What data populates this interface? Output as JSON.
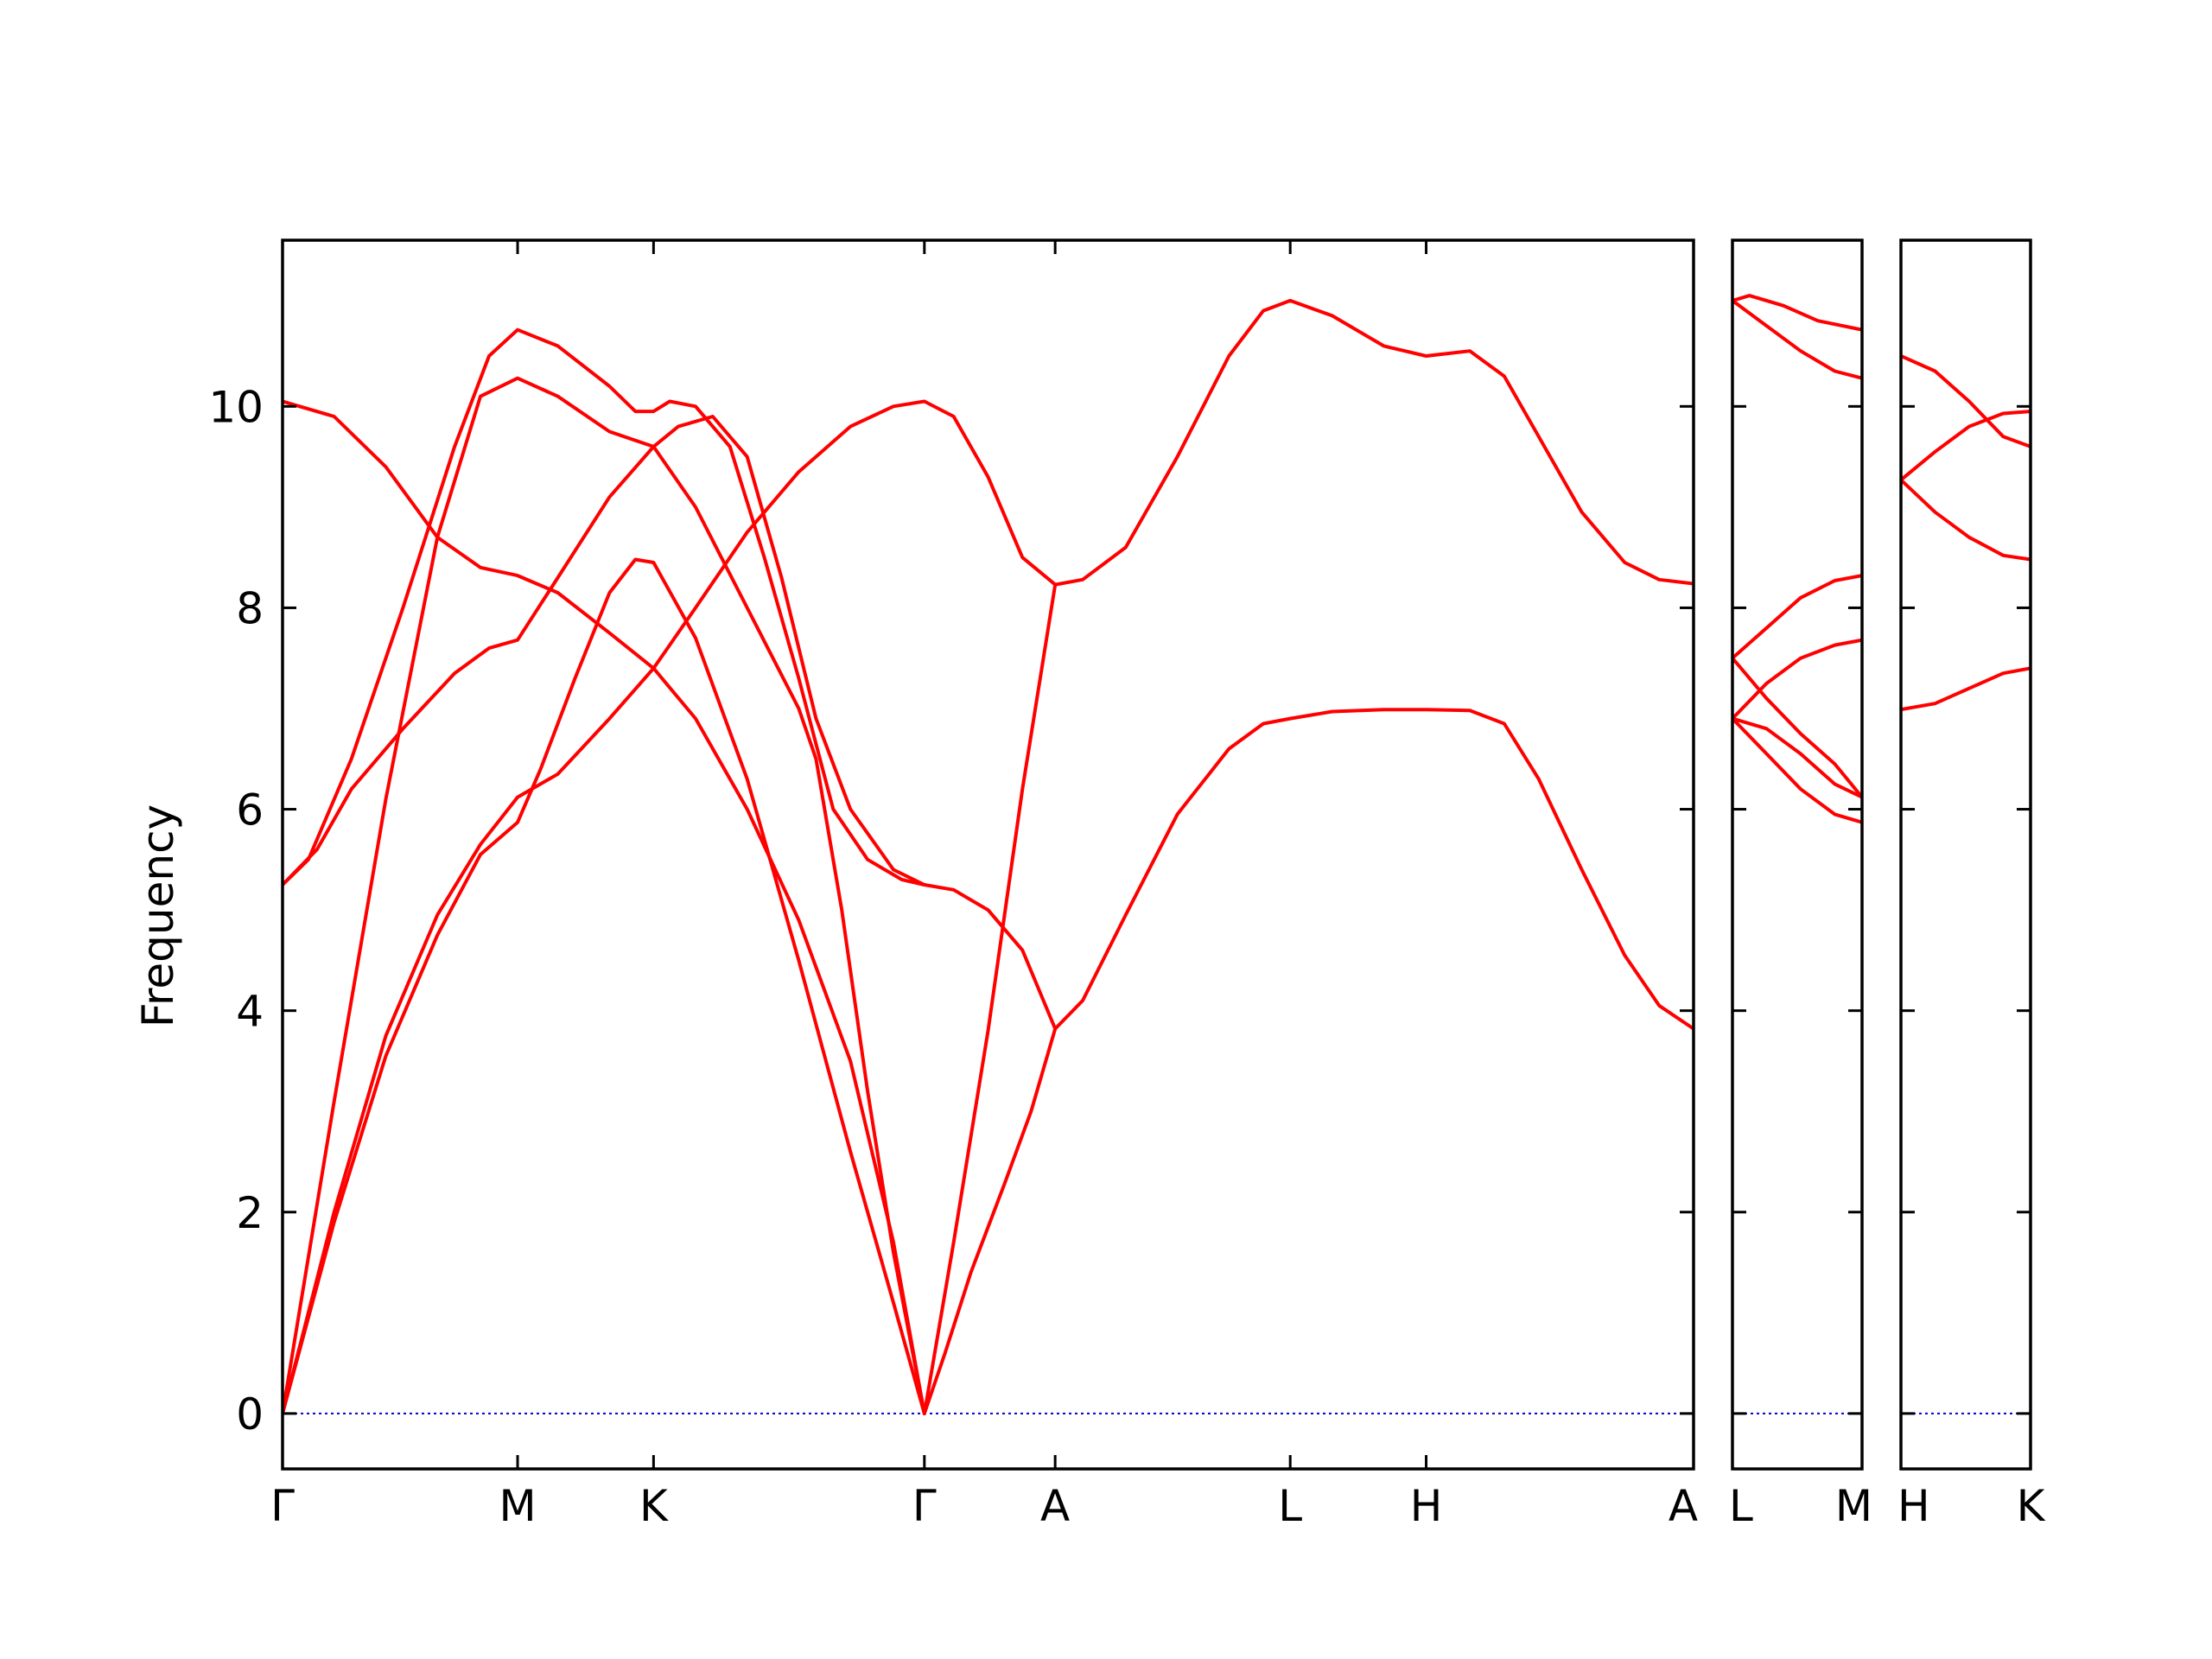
{
  "chart_data": {
    "type": "line",
    "title": "",
    "ylabel": "Frequency",
    "ylim": [
      -0.55,
      11.65
    ],
    "yticks": [
      0,
      2,
      4,
      6,
      8,
      10
    ],
    "grid": false,
    "colors": {
      "band": "#ff0000",
      "zero_line": "#0000cc",
      "frame": "#000000"
    },
    "segments": [
      {
        "name": "Γ–M–K–Γ–A–L–H–A",
        "xlim": [
          0,
          8.2
        ],
        "kpoints": [
          {
            "label": "Γ",
            "x": 0
          },
          {
            "label": "M",
            "x": 1.366
          },
          {
            "label": "K",
            "x": 2.156
          },
          {
            "label": "Γ",
            "x": 3.73
          },
          {
            "label": "A",
            "x": 4.49
          },
          {
            "label": "L",
            "x": 5.856
          },
          {
            "label": "H",
            "x": 6.646
          },
          {
            "label": "A",
            "x": 8.2
          }
        ],
        "bands": [
          [
            [
              0,
              0
            ],
            [
              0.3,
              1.9
            ],
            [
              0.6,
              3.55
            ],
            [
              0.9,
              4.75
            ],
            [
              1.15,
              5.55
            ],
            [
              1.366,
              5.87
            ],
            [
              1.5,
              6.4
            ],
            [
              1.7,
              7.3
            ],
            [
              1.9,
              8.15
            ],
            [
              2.05,
              8.48
            ],
            [
              2.156,
              8.45
            ],
            [
              2.4,
              7.7
            ],
            [
              2.7,
              6.3
            ],
            [
              3.0,
              4.5
            ],
            [
              3.3,
              2.6
            ],
            [
              3.55,
              1.1
            ],
            [
              3.73,
              0
            ],
            [
              3.85,
              0.6
            ],
            [
              4.0,
              1.4
            ],
            [
              4.2,
              2.3
            ],
            [
              4.35,
              3.0
            ],
            [
              4.49,
              3.82
            ],
            [
              4.65,
              4.1
            ],
            [
              4.9,
              4.95
            ],
            [
              5.2,
              5.95
            ],
            [
              5.5,
              6.6
            ],
            [
              5.7,
              6.85
            ],
            [
              5.856,
              6.9
            ],
            [
              6.1,
              6.97
            ],
            [
              6.4,
              6.99
            ],
            [
              6.646,
              6.99
            ],
            [
              6.9,
              6.98
            ],
            [
              7.1,
              6.85
            ],
            [
              7.3,
              6.3
            ],
            [
              7.55,
              5.4
            ],
            [
              7.8,
              4.55
            ],
            [
              8.0,
              4.05
            ],
            [
              8.2,
              3.82
            ]
          ],
          [
            [
              0,
              0
            ],
            [
              0.3,
              2.0
            ],
            [
              0.6,
              3.75
            ],
            [
              0.9,
              4.95
            ],
            [
              1.15,
              5.65
            ],
            [
              1.366,
              6.12
            ],
            [
              1.6,
              6.35
            ],
            [
              1.9,
              6.9
            ],
            [
              2.156,
              7.4
            ],
            [
              2.4,
              8.0
            ],
            [
              2.7,
              8.75
            ],
            [
              3.0,
              9.35
            ],
            [
              3.3,
              9.8
            ],
            [
              3.55,
              10.0
            ],
            [
              3.73,
              10.05
            ],
            [
              3.9,
              9.9
            ],
            [
              4.1,
              9.3
            ],
            [
              4.3,
              8.5
            ],
            [
              4.49,
              8.23
            ],
            [
              4.65,
              8.28
            ],
            [
              4.9,
              8.6
            ],
            [
              5.2,
              9.5
            ],
            [
              5.5,
              10.5
            ],
            [
              5.7,
              10.95
            ],
            [
              5.856,
              11.05
            ],
            [
              6.1,
              10.9
            ],
            [
              6.4,
              10.6
            ],
            [
              6.646,
              10.5
            ],
            [
              6.9,
              10.55
            ],
            [
              7.1,
              10.3
            ],
            [
              7.3,
              9.7
            ],
            [
              7.55,
              8.95
            ],
            [
              7.8,
              8.45
            ],
            [
              8.0,
              8.28
            ],
            [
              8.2,
              8.24
            ]
          ],
          [
            [
              0,
              0
            ],
            [
              0.3,
              3.1
            ],
            [
              0.6,
              6.1
            ],
            [
              0.9,
              8.7
            ],
            [
              1.15,
              10.1
            ],
            [
              1.366,
              10.28
            ],
            [
              1.6,
              10.1
            ],
            [
              1.9,
              9.75
            ],
            [
              2.156,
              9.6
            ],
            [
              2.4,
              9.0
            ],
            [
              2.7,
              8.0
            ],
            [
              3.0,
              7.0
            ],
            [
              3.1,
              6.5
            ],
            [
              3.25,
              5.0
            ],
            [
              3.4,
              3.2
            ],
            [
              3.55,
              1.6
            ],
            [
              3.73,
              0
            ],
            [
              3.9,
              1.7
            ],
            [
              4.1,
              3.8
            ],
            [
              4.3,
              6.2
            ],
            [
              4.49,
              8.23
            ]
          ],
          [
            [
              0,
              5.25
            ],
            [
              0.15,
              5.5
            ],
            [
              0.4,
              6.5
            ],
            [
              0.7,
              8.0
            ],
            [
              1.0,
              9.6
            ],
            [
              1.2,
              10.5
            ],
            [
              1.366,
              10.76
            ],
            [
              1.6,
              10.6
            ],
            [
              1.9,
              10.2
            ],
            [
              2.05,
              9.95
            ],
            [
              2.156,
              9.95
            ],
            [
              2.25,
              10.05
            ],
            [
              2.4,
              10.0
            ],
            [
              2.6,
              9.6
            ],
            [
              2.8,
              8.5
            ],
            [
              3.0,
              7.3
            ],
            [
              3.2,
              6.0
            ],
            [
              3.4,
              5.5
            ],
            [
              3.6,
              5.3
            ],
            [
              3.73,
              5.25
            ],
            [
              3.9,
              5.2
            ],
            [
              4.1,
              5.0
            ],
            [
              4.3,
              4.6
            ],
            [
              4.49,
              3.82
            ]
          ],
          [
            [
              0,
              10.05
            ],
            [
              0.3,
              9.9
            ],
            [
              0.6,
              9.4
            ],
            [
              0.9,
              8.7
            ],
            [
              1.15,
              8.4
            ],
            [
              1.366,
              8.32
            ],
            [
              1.6,
              8.15
            ],
            [
              1.9,
              7.75
            ],
            [
              2.156,
              7.4
            ],
            [
              2.4,
              6.9
            ],
            [
              2.7,
              6.0
            ],
            [
              3.0,
              4.9
            ],
            [
              3.3,
              3.5
            ],
            [
              3.55,
              1.7
            ],
            [
              3.73,
              0
            ]
          ],
          [
            [
              0,
              5.25
            ],
            [
              0.2,
              5.6
            ],
            [
              0.4,
              6.2
            ],
            [
              0.7,
              6.8
            ],
            [
              1.0,
              7.35
            ],
            [
              1.2,
              7.6
            ],
            [
              1.366,
              7.68
            ],
            [
              1.6,
              8.3
            ],
            [
              1.9,
              9.1
            ],
            [
              2.156,
              9.6
            ],
            [
              2.3,
              9.8
            ],
            [
              2.5,
              9.9
            ],
            [
              2.7,
              9.5
            ],
            [
              2.9,
              8.3
            ],
            [
              3.1,
              6.9
            ],
            [
              3.3,
              6.0
            ],
            [
              3.55,
              5.4
            ],
            [
              3.73,
              5.25
            ]
          ]
        ]
      },
      {
        "name": "L–M",
        "xlim": [
          0,
          0.76
        ],
        "kpoints": [
          {
            "label": "L",
            "x": 0
          },
          {
            "label": "M",
            "x": 0.76
          }
        ],
        "bands": [
          [
            [
              0,
              6.9
            ],
            [
              0.2,
              6.55
            ],
            [
              0.4,
              6.2
            ],
            [
              0.6,
              5.95
            ],
            [
              0.76,
              5.87
            ]
          ],
          [
            [
              0,
              6.9
            ],
            [
              0.2,
              6.8
            ],
            [
              0.4,
              6.55
            ],
            [
              0.6,
              6.25
            ],
            [
              0.76,
              6.12
            ]
          ],
          [
            [
              0,
              7.5
            ],
            [
              0.2,
              7.1
            ],
            [
              0.4,
              6.75
            ],
            [
              0.6,
              6.45
            ],
            [
              0.76,
              6.12
            ]
          ],
          [
            [
              0,
              6.9
            ],
            [
              0.2,
              7.25
            ],
            [
              0.4,
              7.5
            ],
            [
              0.6,
              7.63
            ],
            [
              0.76,
              7.68
            ]
          ],
          [
            [
              0,
              7.5
            ],
            [
              0.2,
              7.8
            ],
            [
              0.4,
              8.1
            ],
            [
              0.6,
              8.27
            ],
            [
              0.76,
              8.32
            ]
          ],
          [
            [
              0,
              11.05
            ],
            [
              0.2,
              10.8
            ],
            [
              0.4,
              10.55
            ],
            [
              0.6,
              10.35
            ],
            [
              0.76,
              10.28
            ]
          ],
          [
            [
              0,
              11.05
            ],
            [
              0.1,
              11.1
            ],
            [
              0.3,
              11.0
            ],
            [
              0.5,
              10.85
            ],
            [
              0.76,
              10.76
            ]
          ]
        ]
      },
      {
        "name": "H–K",
        "xlim": [
          0,
          0.76
        ],
        "kpoints": [
          {
            "label": "H",
            "x": 0
          },
          {
            "label": "K",
            "x": 0.76
          }
        ],
        "bands": [
          [
            [
              0,
              6.99
            ],
            [
              0.2,
              7.05
            ],
            [
              0.4,
              7.2
            ],
            [
              0.6,
              7.35
            ],
            [
              0.76,
              7.4
            ]
          ],
          [
            [
              0,
              9.27
            ],
            [
              0.2,
              8.95
            ],
            [
              0.4,
              8.7
            ],
            [
              0.6,
              8.52
            ],
            [
              0.76,
              8.48
            ]
          ],
          [
            [
              0,
              9.27
            ],
            [
              0.2,
              9.55
            ],
            [
              0.4,
              9.8
            ],
            [
              0.6,
              9.93
            ],
            [
              0.76,
              9.95
            ]
          ],
          [
            [
              0,
              10.5
            ],
            [
              0.2,
              10.35
            ],
            [
              0.4,
              10.05
            ],
            [
              0.6,
              9.7
            ],
            [
              0.76,
              9.6
            ]
          ]
        ]
      }
    ]
  }
}
